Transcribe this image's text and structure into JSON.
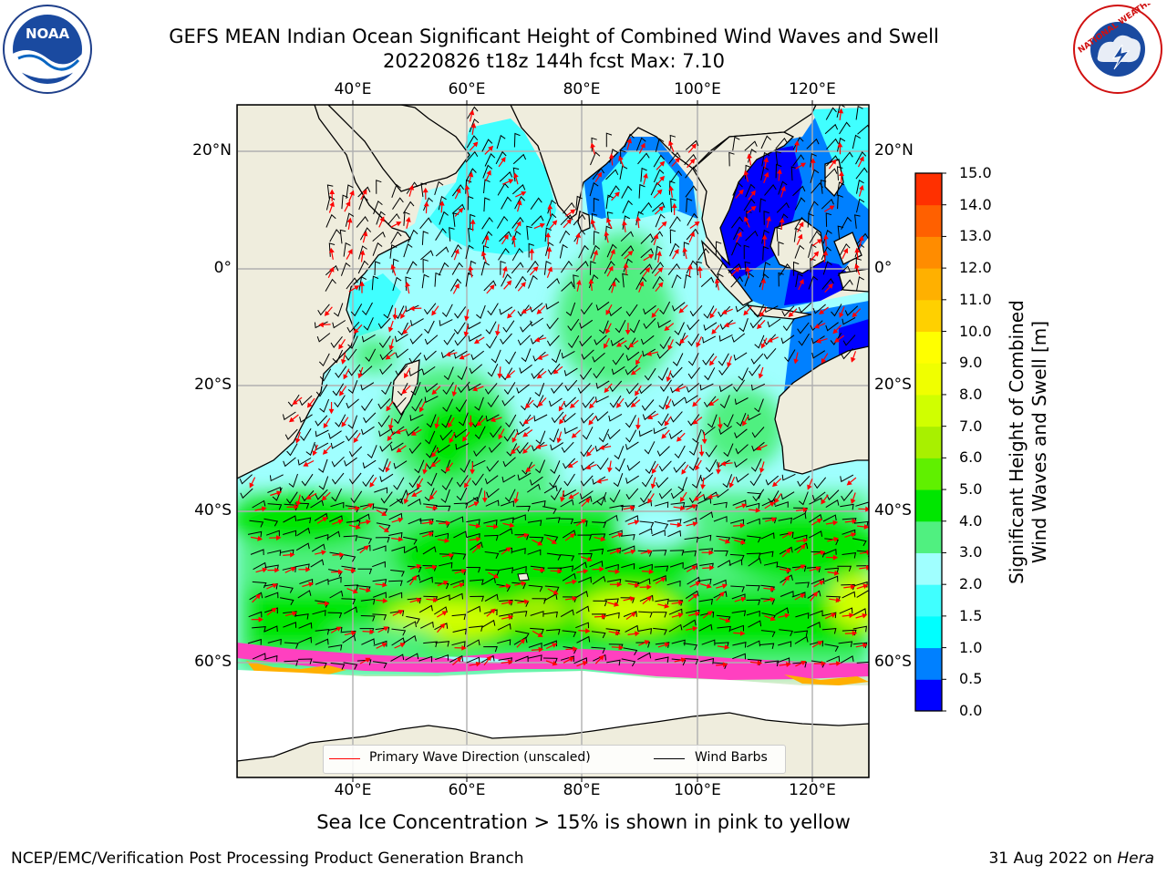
{
  "title": {
    "line1": "GEFS MEAN Indian Ocean Significant Height of Combined Wind Waves and Swell",
    "line2": "20220826 t18z 144h fcst   Max: 7.10"
  },
  "logos": {
    "noaa_text": "NOAA",
    "nws_text": "NATIONAL WEATHER SERVICE"
  },
  "map": {
    "lon_labels": [
      "40°E",
      "60°E",
      "80°E",
      "100°E",
      "120°E"
    ],
    "lat_labels": [
      "20°N",
      "0°",
      "20°S",
      "40°S",
      "60°S"
    ],
    "lon_range": [
      20,
      130
    ],
    "lat_range": [
      -70,
      27
    ],
    "max_value": 7.1
  },
  "colorbar": {
    "title_line1": "Significant Height of Combined",
    "title_line2": "Wind Waves and Swell [m]",
    "ticks": [
      "15.0",
      "14.0",
      "13.0",
      "12.0",
      "11.0",
      "10.0",
      "9.0",
      "8.0",
      "7.0",
      "6.0",
      "5.0",
      "4.0",
      "3.0",
      "2.0",
      "1.5",
      "1.0",
      "0.5",
      "0.0"
    ],
    "colors": [
      "#0000ff",
      "#0080ff",
      "#00ffff",
      "#40ffff",
      "#a0ffff",
      "#50f080",
      "#00e600",
      "#60f000",
      "#a8f000",
      "#d0ff00",
      "#f0ff00",
      "#ffff00",
      "#ffd000",
      "#ffb000",
      "#ff8c00",
      "#ff6000",
      "#ff3000",
      "#ff0000"
    ]
  },
  "legend": {
    "wave_label": "Primary Wave Direction (unscaled)",
    "wind_label": "Wind Barbs",
    "wave_color": "#ff0000",
    "wind_color": "#000000"
  },
  "footer": {
    "note": "Sea Ice Concentration > 15% is shown in pink to yellow",
    "branch": "NCEP/EMC/Verification Post Processing Product Generation Branch",
    "date": "31 Aug 2022 on ",
    "host": "Hera"
  }
}
